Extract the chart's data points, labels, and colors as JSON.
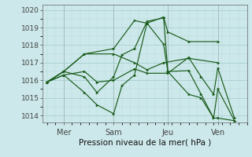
{
  "xlabel": "Pression niveau de la mer( hPa )",
  "ylim": [
    1013.6,
    1020.3
  ],
  "xlim": [
    -2,
    96
  ],
  "yticks": [
    1014,
    1015,
    1016,
    1017,
    1018,
    1019,
    1020
  ],
  "xtick_positions": [
    8,
    32,
    58,
    82
  ],
  "xtick_labels": [
    "Mer",
    "Sam",
    "Jeu",
    "Ven"
  ],
  "bg_color": "#cce8ea",
  "line_color": "#1a5c1a",
  "grid_major_color": "#aacfcf",
  "grid_minor_color": "#b8d8d8",
  "series": [
    {
      "x": [
        0,
        8,
        18,
        32,
        42,
        48,
        56,
        58,
        68,
        82
      ],
      "y": [
        1015.9,
        1016.5,
        1017.5,
        1017.8,
        1019.4,
        1019.25,
        1019.6,
        1018.75,
        1018.2,
        1018.2
      ]
    },
    {
      "x": [
        0,
        8,
        18,
        32,
        42,
        48,
        56,
        68,
        82
      ],
      "y": [
        1015.9,
        1016.5,
        1017.5,
        1017.5,
        1017.0,
        1016.6,
        1017.0,
        1017.25,
        1017.0
      ]
    },
    {
      "x": [
        0,
        8,
        18,
        24,
        32,
        42,
        48,
        58,
        68,
        74,
        80,
        82,
        90
      ],
      "y": [
        1015.9,
        1016.3,
        1016.5,
        1015.9,
        1016.0,
        1016.65,
        1016.4,
        1016.4,
        1017.3,
        1016.2,
        1015.2,
        1016.7,
        1013.85
      ]
    },
    {
      "x": [
        0,
        8,
        18,
        24,
        32,
        36,
        42,
        48,
        56,
        58,
        68,
        74,
        80,
        82,
        90
      ],
      "y": [
        1015.9,
        1016.3,
        1015.3,
        1014.6,
        1014.1,
        1015.7,
        1016.3,
        1019.25,
        1018.05,
        1016.5,
        1016.55,
        1015.2,
        1013.85,
        1015.5,
        1013.7
      ]
    },
    {
      "x": [
        0,
        8,
        18,
        24,
        32,
        36,
        42,
        48,
        56,
        58,
        68,
        74,
        80,
        82,
        90
      ],
      "y": [
        1015.9,
        1016.5,
        1016.2,
        1015.3,
        1016.2,
        1017.45,
        1017.8,
        1019.35,
        1019.55,
        1016.5,
        1015.2,
        1015.0,
        1013.85,
        1013.85,
        1013.7
      ]
    }
  ]
}
